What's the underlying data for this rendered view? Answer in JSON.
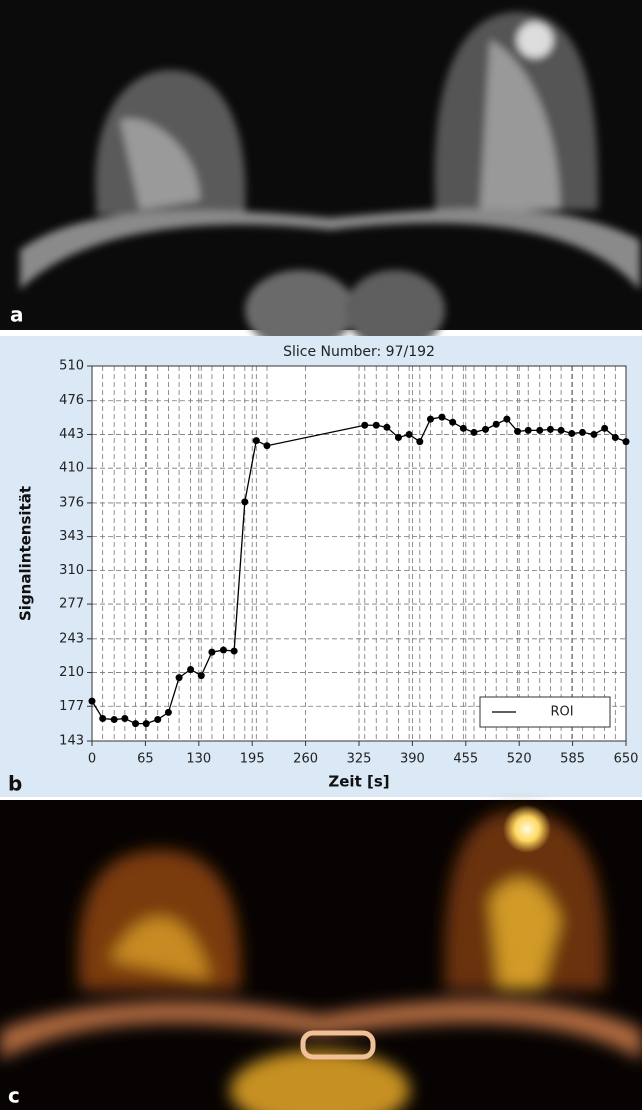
{
  "panel_labels": [
    "a",
    "b",
    "c"
  ],
  "chart_data": {
    "type": "line",
    "title": "Slice Number: 97/192",
    "x_label": "Zeit [s]",
    "y_label": "Signalintensität",
    "x": [
      0,
      13,
      27,
      40,
      53,
      66,
      80,
      93,
      106,
      120,
      133,
      146,
      160,
      173,
      186,
      200,
      213,
      332,
      346,
      359,
      373,
      386,
      399,
      412,
      426,
      439,
      452,
      465,
      479,
      492,
      505,
      518,
      531,
      545,
      558,
      571,
      584,
      597,
      611,
      624,
      637,
      650
    ],
    "series": [
      {
        "name": "ROI",
        "color": "#000000",
        "values": [
          182,
          165,
          164,
          165,
          160,
          160,
          164,
          171,
          205,
          213,
          207,
          230,
          232,
          231,
          377,
          437,
          432,
          452,
          452,
          450,
          440,
          443,
          436,
          458,
          460,
          455,
          449,
          445,
          448,
          453,
          458,
          446,
          447,
          447,
          448,
          447,
          444,
          445,
          443,
          449,
          440,
          436
        ]
      }
    ],
    "xlim": [
      0,
      650
    ],
    "ylim": [
      143,
      510
    ],
    "xticks": [
      0,
      65,
      130,
      195,
      260,
      325,
      390,
      455,
      520,
      585,
      650
    ],
    "yticks": [
      143,
      177,
      210,
      243,
      277,
      310,
      343,
      376,
      410,
      443,
      476,
      510
    ],
    "grid": true,
    "legend": "lower right"
  }
}
